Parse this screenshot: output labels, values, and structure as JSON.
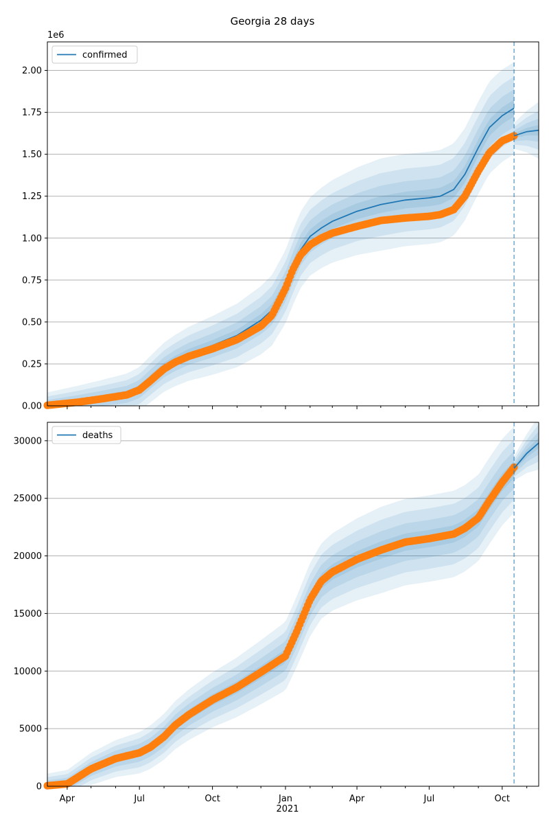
{
  "figure": {
    "title": "Georgia 28 days"
  },
  "colors": {
    "model": "#1f77b4",
    "observed": "#ff7f0e",
    "grid": "#b0b0b0",
    "band": "#1f77b4"
  },
  "x_axis": {
    "ticks": [
      {
        "date": "2020-04-01",
        "label": "Apr"
      },
      {
        "date": "2020-07-01",
        "label": "Jul"
      },
      {
        "date": "2020-10-01",
        "label": "Oct"
      },
      {
        "date": "2021-01-01",
        "label": "Jan"
      },
      {
        "date": "2021-04-01",
        "label": "Apr"
      },
      {
        "date": "2021-07-01",
        "label": "Jul"
      },
      {
        "date": "2021-10-01",
        "label": "Oct"
      }
    ],
    "year_label": "2021",
    "xlim": [
      "2020-03-07",
      "2021-11-16"
    ]
  },
  "chart_data": [
    {
      "type": "line",
      "legend": "confirmed",
      "legend_position": "upper-left",
      "offset_label": "1e6",
      "ylim": [
        0,
        2.17
      ],
      "yticks": [
        "0.00",
        "0.25",
        "0.50",
        "0.75",
        "1.00",
        "1.25",
        "1.50",
        "1.75",
        "2.00"
      ],
      "grid": "horizontal",
      "forecast_start": "2021-10-16",
      "model": [
        [
          "2020-03-07",
          0.003
        ],
        [
          "2020-04-15",
          0.025
        ],
        [
          "2020-05-15",
          0.045
        ],
        [
          "2020-06-15",
          0.068
        ],
        [
          "2020-07-01",
          0.1
        ],
        [
          "2020-07-15",
          0.16
        ],
        [
          "2020-08-01",
          0.23
        ],
        [
          "2020-08-15",
          0.27
        ],
        [
          "2020-09-01",
          0.31
        ],
        [
          "2020-10-01",
          0.36
        ],
        [
          "2020-11-01",
          0.42
        ],
        [
          "2020-12-01",
          0.51
        ],
        [
          "2020-12-15",
          0.57
        ],
        [
          "2021-01-01",
          0.71
        ],
        [
          "2021-01-10",
          0.82
        ],
        [
          "2021-01-20",
          0.93
        ],
        [
          "2021-02-01",
          1.01
        ],
        [
          "2021-02-15",
          1.06
        ],
        [
          "2021-03-01",
          1.1
        ],
        [
          "2021-04-01",
          1.16
        ],
        [
          "2021-05-01",
          1.2
        ],
        [
          "2021-06-01",
          1.227
        ],
        [
          "2021-07-01",
          1.24
        ],
        [
          "2021-07-15",
          1.25
        ],
        [
          "2021-08-01",
          1.29
        ],
        [
          "2021-08-15",
          1.38
        ],
        [
          "2021-09-01",
          1.54
        ],
        [
          "2021-09-15",
          1.66
        ],
        [
          "2021-10-01",
          1.73
        ],
        [
          "2021-10-16",
          1.775
        ]
      ],
      "forecast": [
        [
          "2021-10-16",
          1.61
        ],
        [
          "2021-11-01",
          1.635
        ],
        [
          "2021-11-16",
          1.643
        ]
      ],
      "observed": [
        [
          "2020-03-07",
          0.003
        ],
        [
          "2020-04-15",
          0.022
        ],
        [
          "2020-05-15",
          0.042
        ],
        [
          "2020-06-15",
          0.065
        ],
        [
          "2020-07-01",
          0.095
        ],
        [
          "2020-07-15",
          0.15
        ],
        [
          "2020-08-01",
          0.22
        ],
        [
          "2020-08-15",
          0.26
        ],
        [
          "2020-09-01",
          0.295
        ],
        [
          "2020-10-01",
          0.34
        ],
        [
          "2020-11-01",
          0.395
        ],
        [
          "2020-12-01",
          0.475
        ],
        [
          "2020-12-15",
          0.54
        ],
        [
          "2021-01-01",
          0.7
        ],
        [
          "2021-01-10",
          0.81
        ],
        [
          "2021-01-20",
          0.9
        ],
        [
          "2021-02-01",
          0.96
        ],
        [
          "2021-02-15",
          1.0
        ],
        [
          "2021-03-01",
          1.03
        ],
        [
          "2021-04-01",
          1.07
        ],
        [
          "2021-05-01",
          1.105
        ],
        [
          "2021-06-01",
          1.12
        ],
        [
          "2021-07-01",
          1.13
        ],
        [
          "2021-07-15",
          1.14
        ],
        [
          "2021-08-01",
          1.17
        ],
        [
          "2021-08-15",
          1.25
        ],
        [
          "2021-09-01",
          1.4
        ],
        [
          "2021-09-15",
          1.51
        ],
        [
          "2021-10-01",
          1.58
        ],
        [
          "2021-10-16",
          1.61
        ]
      ],
      "band_half_widths": [
        0.04,
        0.09,
        0.15,
        0.22
      ]
    },
    {
      "type": "line",
      "legend": "deaths",
      "legend_position": "upper-left",
      "ylim": [
        0,
        31600
      ],
      "yticks": [
        "0",
        "5000",
        "10000",
        "15000",
        "20000",
        "25000",
        "30000"
      ],
      "grid": "horizontal",
      "forecast_start": "2021-10-16",
      "model": [
        [
          "2020-03-07",
          50
        ],
        [
          "2020-04-01",
          200
        ],
        [
          "2020-05-01",
          1500
        ],
        [
          "2020-06-01",
          2400
        ],
        [
          "2020-07-01",
          2900
        ],
        [
          "2020-07-15",
          3400
        ],
        [
          "2020-08-01",
          4300
        ],
        [
          "2020-08-15",
          5300
        ],
        [
          "2020-09-01",
          6200
        ],
        [
          "2020-10-01",
          7500
        ],
        [
          "2020-11-01",
          8600
        ],
        [
          "2020-12-01",
          9900
        ],
        [
          "2021-01-01",
          11300
        ],
        [
          "2021-01-15",
          13400
        ],
        [
          "2021-02-01",
          16200
        ],
        [
          "2021-02-15",
          17800
        ],
        [
          "2021-03-01",
          18600
        ],
        [
          "2021-04-01",
          19700
        ],
        [
          "2021-05-01",
          20500
        ],
        [
          "2021-06-01",
          21200
        ],
        [
          "2021-07-01",
          21500
        ],
        [
          "2021-08-01",
          21900
        ],
        [
          "2021-08-15",
          22400
        ],
        [
          "2021-09-01",
          23300
        ],
        [
          "2021-09-15",
          24800
        ],
        [
          "2021-10-01",
          26400
        ],
        [
          "2021-10-16",
          27500
        ]
      ],
      "forecast": [
        [
          "2021-10-16",
          27600
        ],
        [
          "2021-11-01",
          28900
        ],
        [
          "2021-11-16",
          29800
        ]
      ],
      "observed": [
        [
          "2020-03-07",
          50
        ],
        [
          "2020-04-01",
          200
        ],
        [
          "2020-05-01",
          1500
        ],
        [
          "2020-06-01",
          2400
        ],
        [
          "2020-07-01",
          2900
        ],
        [
          "2020-07-15",
          3400
        ],
        [
          "2020-08-01",
          4300
        ],
        [
          "2020-08-15",
          5300
        ],
        [
          "2020-09-01",
          6200
        ],
        [
          "2020-10-01",
          7500
        ],
        [
          "2020-11-01",
          8600
        ],
        [
          "2020-12-01",
          9900
        ],
        [
          "2021-01-01",
          11300
        ],
        [
          "2021-01-15",
          13400
        ],
        [
          "2021-02-01",
          16200
        ],
        [
          "2021-02-15",
          17800
        ],
        [
          "2021-03-01",
          18600
        ],
        [
          "2021-04-01",
          19700
        ],
        [
          "2021-05-01",
          20500
        ],
        [
          "2021-06-01",
          21200
        ],
        [
          "2021-07-01",
          21500
        ],
        [
          "2021-08-01",
          21900
        ],
        [
          "2021-08-15",
          22400
        ],
        [
          "2021-09-01",
          23300
        ],
        [
          "2021-09-15",
          24800
        ],
        [
          "2021-10-01",
          26400
        ],
        [
          "2021-10-16",
          27700
        ]
      ],
      "band_half_widths": [
        600,
        1300,
        2100,
        3000
      ]
    }
  ]
}
